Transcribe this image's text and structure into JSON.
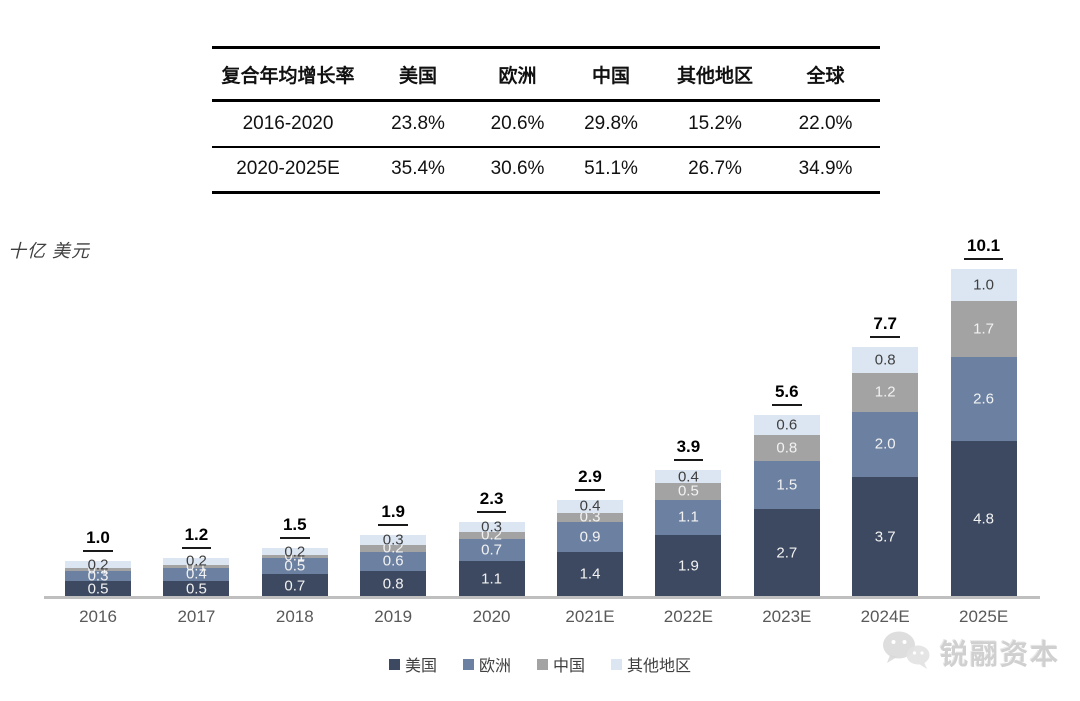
{
  "table": {
    "header": [
      "复合年均增长率",
      "美国",
      "欧洲",
      "中国",
      "其他地区",
      "全球"
    ],
    "rows": [
      [
        "2016-2020",
        "23.8%",
        "20.6%",
        "29.8%",
        "15.2%",
        "22.0%"
      ],
      [
        "2020-2025E",
        "35.4%",
        "30.6%",
        "51.1%",
        "26.7%",
        "34.9%"
      ]
    ]
  },
  "chart_data": {
    "type": "bar",
    "stacked": true,
    "title": "",
    "unit_label": "十亿 美元",
    "categories": [
      "2016",
      "2017",
      "2018",
      "2019",
      "2020",
      "2021E",
      "2022E",
      "2023E",
      "2024E",
      "2025E"
    ],
    "series": [
      {
        "key": "usa",
        "name": "美国",
        "color": "#3c4961",
        "label_color": "#f2f2f2",
        "values": [
          0.5,
          0.5,
          0.7,
          0.8,
          1.1,
          1.4,
          1.9,
          2.7,
          3.7,
          4.8
        ]
      },
      {
        "key": "europe",
        "name": "欧洲",
        "color": "#6c81a1",
        "label_color": "#f2f2f2",
        "values": [
          0.3,
          0.4,
          0.5,
          0.6,
          0.7,
          0.9,
          1.1,
          1.5,
          2.0,
          2.6
        ]
      },
      {
        "key": "china",
        "name": "中国",
        "color": "#a3a3a3",
        "label_color": "#f2f2f2",
        "values": [
          0.1,
          0.1,
          0.1,
          0.2,
          0.2,
          0.3,
          0.5,
          0.8,
          1.2,
          1.7
        ]
      },
      {
        "key": "other",
        "name": "其他地区",
        "color": "#dce6f3",
        "label_color": "#3f3f3f",
        "values": [
          0.2,
          0.2,
          0.2,
          0.3,
          0.3,
          0.4,
          0.4,
          0.6,
          0.8,
          1.0
        ]
      }
    ],
    "totals": [
      "1.0",
      "1.2",
      "1.5",
      "1.9",
      "2.3",
      "2.9",
      "3.9",
      "5.6",
      "7.7",
      "10.1"
    ],
    "ylim": [
      0,
      10.5
    ],
    "grid": false,
    "legend_position": "bottom"
  },
  "watermark": {
    "brand": "锐翮资本",
    "icon": "wechat-icon"
  }
}
